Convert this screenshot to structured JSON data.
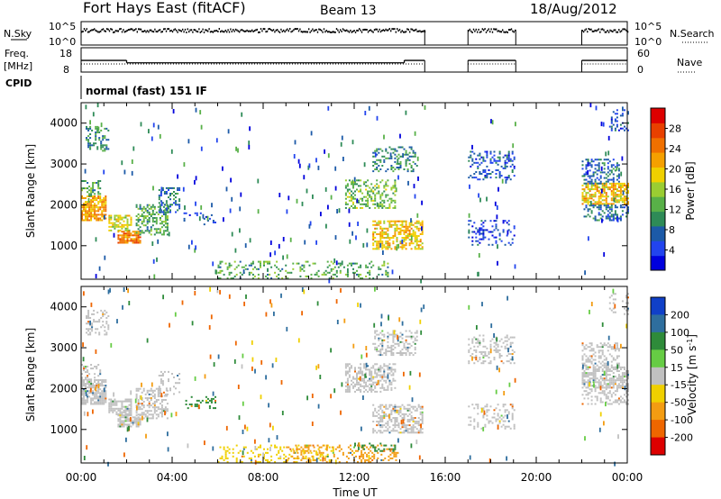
{
  "header": {
    "station": "Fort Hays East (fitACF)",
    "beam": "Beam 13",
    "date": "18/Aug/2012"
  },
  "status_panels": {
    "nsky_label": "N.Sky",
    "nsky_ticks": [
      "10^5",
      "10^0"
    ],
    "nsearch_label": "N.Search",
    "nsearch_ticks": [
      "10^5",
      "10^0"
    ],
    "freq_label_line1": "Freq.",
    "freq_label_line2": "[MHz]",
    "freq_ticks": [
      "18",
      "8"
    ],
    "nave_label": "Nave",
    "nave_ticks": [
      "60",
      "0"
    ],
    "cpid_label": "CPID",
    "cpid_text": "normal (fast) 151 IF",
    "data_segments_hours": [
      [
        0,
        15.1
      ],
      [
        17,
        19.1
      ],
      [
        22,
        24
      ]
    ],
    "freq_segments": [
      {
        "start": 0,
        "end": 2,
        "value": 12.8
      },
      {
        "start": 2,
        "end": 14.2,
        "value": 11.8
      },
      {
        "start": 14.2,
        "end": 15.1,
        "value": 12.8
      },
      {
        "start": 17,
        "end": 19.1,
        "value": 12.8
      },
      {
        "start": 22,
        "end": 24,
        "value": 12.8
      }
    ]
  },
  "chart_data": [
    {
      "type": "heatmap",
      "title": "",
      "xlabel": "Time UT",
      "ylabel": "Slant Range [km]",
      "xlim": [
        0,
        24
      ],
      "ylim": [
        180,
        4500
      ],
      "x_ticks": [
        "00:00",
        "04:00",
        "08:00",
        "12:00",
        "16:00",
        "20:00",
        "00:00"
      ],
      "y_ticks": [
        "1000",
        "2000",
        "3000",
        "4000"
      ],
      "y_tick_values": [
        1000,
        2000,
        3000,
        4000
      ],
      "colorbar": {
        "label": "Power [dB]",
        "range": [
          0,
          32
        ],
        "ticks": [
          "4",
          "8",
          "12",
          "16",
          "20",
          "24",
          "28"
        ],
        "tick_values": [
          4,
          8,
          12,
          16,
          20,
          24,
          28
        ],
        "colors": [
          "#0000dd",
          "#2244ee",
          "#1c5aa8",
          "#2e8b57",
          "#58b048",
          "#9acd32",
          "#f0d000",
          "#f5a000",
          "#f07000",
          "#e84000",
          "#dd0000"
        ]
      },
      "echo_regions": [
        {
          "t0": 0.0,
          "t1": 1.1,
          "r0": 1600,
          "r1": 2200,
          "v": 22,
          "d": 0.75
        },
        {
          "t0": 0.2,
          "t1": 1.2,
          "r0": 3300,
          "r1": 3900,
          "v": 10,
          "d": 0.35
        },
        {
          "t0": 0.0,
          "t1": 0.8,
          "r0": 2200,
          "r1": 2600,
          "v": 12,
          "d": 0.45
        },
        {
          "t0": 1.2,
          "t1": 2.2,
          "r0": 1350,
          "r1": 1750,
          "v": 18,
          "d": 0.6
        },
        {
          "t0": 1.6,
          "t1": 2.6,
          "r0": 1050,
          "r1": 1350,
          "v": 24,
          "d": 0.75
        },
        {
          "t0": 2.4,
          "t1": 3.8,
          "r0": 1250,
          "r1": 2000,
          "v": 12,
          "d": 0.45
        },
        {
          "t0": 3.4,
          "t1": 4.3,
          "r0": 1800,
          "r1": 2400,
          "v": 8,
          "d": 0.35
        },
        {
          "t0": 4.5,
          "t1": 5.9,
          "r0": 1500,
          "r1": 1800,
          "v": 6,
          "d": 0.2
        },
        {
          "t0": 6.0,
          "t1": 13.5,
          "r0": 180,
          "r1": 600,
          "v": 12,
          "d": 0.22
        },
        {
          "t0": 11.6,
          "t1": 13.8,
          "r0": 1900,
          "r1": 2600,
          "v": 14,
          "d": 0.4
        },
        {
          "t0": 12.8,
          "t1": 15.0,
          "r0": 900,
          "r1": 1600,
          "v": 20,
          "d": 0.55
        },
        {
          "t0": 12.8,
          "t1": 14.8,
          "r0": 2800,
          "r1": 3400,
          "v": 10,
          "d": 0.35
        },
        {
          "t0": 17.0,
          "t1": 19.0,
          "r0": 2600,
          "r1": 3300,
          "v": 6,
          "d": 0.3
        },
        {
          "t0": 17.0,
          "t1": 19.0,
          "r0": 1000,
          "r1": 1600,
          "v": 5,
          "d": 0.25
        },
        {
          "t0": 22.0,
          "t1": 24.0,
          "r0": 2000,
          "r1": 2500,
          "v": 20,
          "d": 0.65
        },
        {
          "t0": 22.0,
          "t1": 24.0,
          "r0": 1600,
          "r1": 2000,
          "v": 8,
          "d": 0.35
        },
        {
          "t0": 22.0,
          "t1": 23.6,
          "r0": 2500,
          "r1": 3100,
          "v": 8,
          "d": 0.4
        },
        {
          "t0": 23.2,
          "t1": 24.0,
          "r0": 3800,
          "r1": 4300,
          "v": 6,
          "d": 0.25
        }
      ]
    },
    {
      "type": "heatmap",
      "title": "",
      "xlabel": "Time UT",
      "ylabel": "Slant Range [km]",
      "xlim": [
        0,
        24
      ],
      "ylim": [
        180,
        4500
      ],
      "x_ticks": [
        "00:00",
        "04:00",
        "08:00",
        "12:00",
        "16:00",
        "20:00",
        "00:00"
      ],
      "y_ticks": [
        "1000",
        "2000",
        "3000",
        "4000"
      ],
      "y_tick_values": [
        1000,
        2000,
        3000,
        4000
      ],
      "colorbar": {
        "label": "Velocity [m s^-1]",
        "ticks": [
          "200",
          "100",
          "50",
          "15",
          "-15",
          "-50",
          "-100",
          "-200"
        ],
        "tick_values": [
          200,
          100,
          50,
          15,
          -15,
          -50,
          -100,
          -200
        ],
        "bands": [
          {
            "min": 200,
            "max": 250,
            "color": "#1040c8"
          },
          {
            "min": 100,
            "max": 200,
            "color": "#2e6e9e"
          },
          {
            "min": 50,
            "max": 100,
            "color": "#2e8b3a"
          },
          {
            "min": 15,
            "max": 50,
            "color": "#66cc44"
          },
          {
            "min": -15,
            "max": 15,
            "color": "#c0c0c0"
          },
          {
            "min": -50,
            "max": -15,
            "color": "#f0d000"
          },
          {
            "min": -100,
            "max": -50,
            "color": "#f39c12"
          },
          {
            "min": -200,
            "max": -100,
            "color": "#ee6600"
          },
          {
            "min": -250,
            "max": -200,
            "color": "#dd0000"
          }
        ]
      },
      "echo_regions": [
        {
          "t0": 0.0,
          "t1": 1.1,
          "r0": 1600,
          "r1": 2200,
          "v": 0,
          "d": 0.75
        },
        {
          "t0": 0.2,
          "t1": 1.2,
          "r0": 3300,
          "r1": 3900,
          "v": 0,
          "d": 0.3
        },
        {
          "t0": 0.0,
          "t1": 0.8,
          "r0": 2200,
          "r1": 2600,
          "v": 0,
          "d": 0.4
        },
        {
          "t0": 1.2,
          "t1": 2.2,
          "r0": 1350,
          "r1": 1750,
          "v": 0,
          "d": 0.6
        },
        {
          "t0": 1.6,
          "t1": 2.6,
          "r0": 1050,
          "r1": 1350,
          "v": 0,
          "d": 0.75
        },
        {
          "t0": 2.4,
          "t1": 3.8,
          "r0": 1250,
          "r1": 2000,
          "v": 0,
          "d": 0.45
        },
        {
          "t0": 3.4,
          "t1": 4.3,
          "r0": 1800,
          "r1": 2400,
          "v": 0,
          "d": 0.35
        },
        {
          "t0": 4.5,
          "t1": 5.9,
          "r0": 1500,
          "r1": 1800,
          "v": 80,
          "d": 0.25
        },
        {
          "t0": 6.0,
          "t1": 11.2,
          "r0": 180,
          "r1": 600,
          "v": -30,
          "d": 0.2
        },
        {
          "t0": 9.0,
          "t1": 14.0,
          "r0": 180,
          "r1": 600,
          "v": -70,
          "d": 0.25
        },
        {
          "t0": 12.0,
          "t1": 13.8,
          "r0": 450,
          "r1": 650,
          "v": 60,
          "d": 0.3
        },
        {
          "t0": 11.6,
          "t1": 13.8,
          "r0": 1900,
          "r1": 2600,
          "v": 0,
          "d": 0.45
        },
        {
          "t0": 12.8,
          "t1": 15.0,
          "r0": 900,
          "r1": 1600,
          "v": 0,
          "d": 0.55
        },
        {
          "t0": 12.8,
          "t1": 14.8,
          "r0": 2800,
          "r1": 3400,
          "v": 0,
          "d": 0.35
        },
        {
          "t0": 17.0,
          "t1": 19.0,
          "r0": 2600,
          "r1": 3300,
          "v": 0,
          "d": 0.3
        },
        {
          "t0": 17.0,
          "t1": 19.0,
          "r0": 1000,
          "r1": 1600,
          "v": 0,
          "d": 0.25
        },
        {
          "t0": 22.0,
          "t1": 24.0,
          "r0": 2000,
          "r1": 2500,
          "v": 0,
          "d": 0.65
        },
        {
          "t0": 22.0,
          "t1": 24.0,
          "r0": 1600,
          "r1": 2000,
          "v": 0,
          "d": 0.3
        },
        {
          "t0": 22.0,
          "t1": 23.6,
          "r0": 2500,
          "r1": 3100,
          "v": 0,
          "d": 0.4
        },
        {
          "t0": 23.2,
          "t1": 24.0,
          "r0": 3800,
          "r1": 4300,
          "v": 0,
          "d": 0.25
        }
      ]
    }
  ]
}
